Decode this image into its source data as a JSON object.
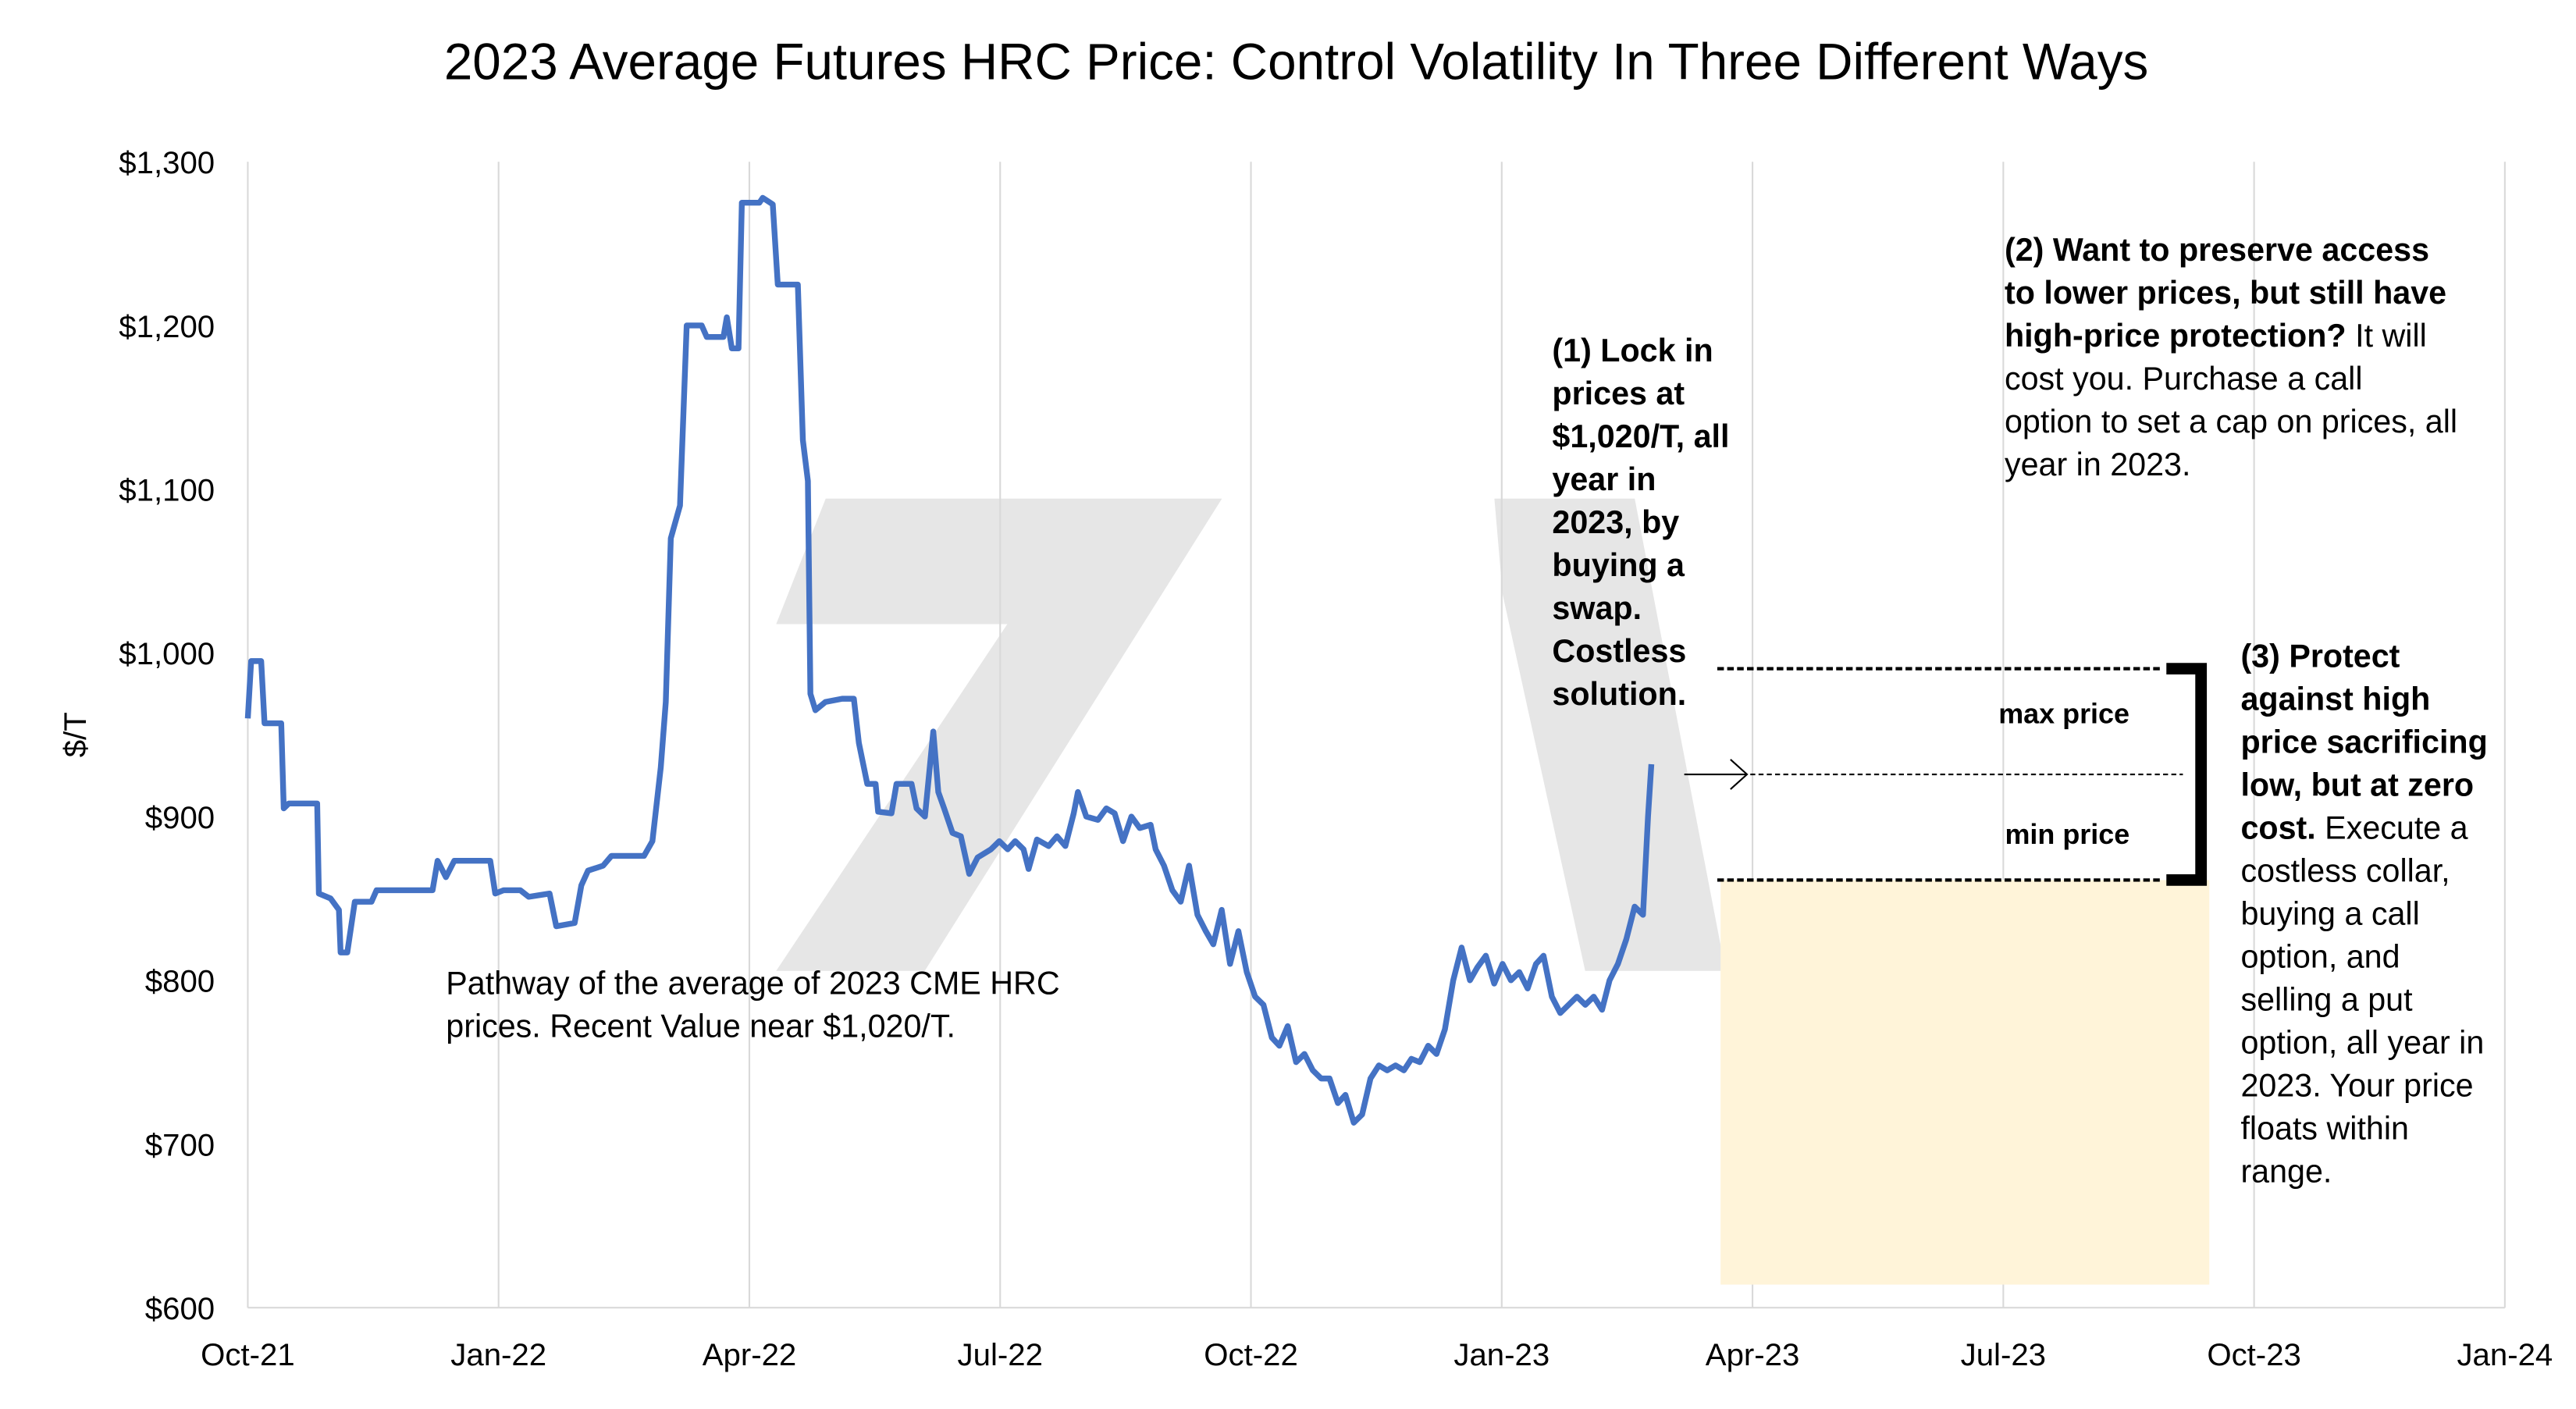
{
  "chart_data": {
    "type": "line",
    "title": "2023 Average Futures HRC Price: Control Volatility In Three Different Ways",
    "y_label": "$/T",
    "xlim": [
      0,
      27
    ],
    "xticks": [
      {
        "value": 0,
        "label": "Oct-21"
      },
      {
        "value": 3,
        "label": "Jan-22"
      },
      {
        "value": 6,
        "label": "Apr-22"
      },
      {
        "value": 9,
        "label": "Jul-22"
      },
      {
        "value": 12,
        "label": "Oct-22"
      },
      {
        "value": 15,
        "label": "Jan-23"
      },
      {
        "value": 18,
        "label": "Apr-23"
      },
      {
        "value": 21,
        "label": "Jul-23"
      },
      {
        "value": 24,
        "label": "Oct-23"
      },
      {
        "value": 27,
        "label": "Jan-24"
      }
    ],
    "ylim": [
      600,
      1300
    ],
    "yticks": [
      {
        "value": 600,
        "label": "$600"
      },
      {
        "value": 700,
        "label": "$700"
      },
      {
        "value": 800,
        "label": "$800"
      },
      {
        "value": 900,
        "label": "$900"
      },
      {
        "value": 1000,
        "label": "$1,000"
      },
      {
        "value": 1100,
        "label": "$1,100"
      },
      {
        "value": 1200,
        "label": "$1,200"
      },
      {
        "value": 1300,
        "label": "$1,300"
      }
    ],
    "grid": true,
    "series": [
      {
        "color": "#4472c4",
        "x": [
          0,
          0.04,
          0.16,
          0.2,
          0.4,
          0.43,
          0.49,
          0.83,
          0.85,
          0.99,
          1.09,
          1.11,
          1.19,
          1.28,
          1.48,
          1.54,
          2.21,
          2.27,
          2.37,
          2.47,
          2.9,
          2.96,
          3.06,
          3.26,
          3.36,
          3.61,
          3.69,
          3.91,
          3.99,
          4.07,
          4.25,
          4.35,
          4.74,
          4.84,
          4.94,
          5.0,
          5.06,
          5.17,
          5.25,
          5.43,
          5.49,
          5.69,
          5.73,
          5.79,
          5.87,
          5.91,
          6.12,
          6.16,
          6.28,
          6.34,
          6.58,
          6.64,
          6.7,
          6.73,
          6.79,
          6.91,
          7.11,
          7.25,
          7.31,
          7.41,
          7.51,
          7.54,
          7.7,
          7.76,
          7.94,
          8.0,
          8.1,
          8.2,
          8.26,
          8.33,
          8.43,
          8.53,
          8.63,
          8.73,
          8.89,
          8.99,
          9.09,
          9.18,
          9.28,
          9.34,
          9.44,
          9.58,
          9.68,
          9.78,
          9.88,
          9.93,
          10.03,
          10.17,
          10.27,
          10.37,
          10.47,
          10.57,
          10.67,
          10.8,
          10.86,
          10.96,
          11.06,
          11.16,
          11.26,
          11.36,
          11.46,
          11.55,
          11.65,
          11.75,
          11.85,
          11.95,
          12.05,
          12.15,
          12.25,
          12.34,
          12.44,
          12.54,
          12.64,
          12.74,
          12.84,
          12.94,
          13.04,
          13.13,
          13.23,
          13.33,
          13.43,
          13.53,
          13.63,
          13.73,
          13.83,
          13.92,
          14.02,
          14.12,
          14.22,
          14.32,
          14.42,
          14.52,
          14.62,
          14.71,
          14.81,
          14.91,
          15.01,
          15.11,
          15.21,
          15.31,
          15.41,
          15.5,
          15.6,
          15.7,
          15.8,
          15.9,
          16.0,
          16.1,
          16.2,
          16.29,
          16.39,
          16.49,
          16.59,
          16.69,
          16.75,
          16.79
        ],
        "values": [
          960,
          995,
          995,
          957,
          957,
          905,
          908,
          908,
          853,
          850,
          843,
          817,
          817,
          848,
          848,
          855,
          855,
          873,
          863,
          873,
          873,
          853,
          855,
          855,
          851,
          853,
          833,
          835,
          858,
          867,
          870,
          876,
          876,
          885,
          930,
          970,
          1070,
          1090,
          1200,
          1200,
          1193,
          1193,
          1205,
          1186,
          1186,
          1275,
          1275,
          1278,
          1274,
          1225,
          1225,
          1130,
          1105,
          975,
          965,
          970,
          972,
          972,
          945,
          920,
          920,
          903,
          902,
          920,
          920,
          905,
          900,
          952,
          915,
          905,
          890,
          888,
          865,
          875,
          880,
          885,
          880,
          885,
          880,
          868,
          886,
          882,
          888,
          882,
          902,
          915,
          900,
          898,
          905,
          902,
          885,
          900,
          893,
          895,
          880,
          870,
          855,
          848,
          870,
          840,
          830,
          822,
          843,
          810,
          830,
          805,
          790,
          785,
          765,
          760,
          772,
          750,
          755,
          745,
          740,
          740,
          725,
          730,
          713,
          718,
          740,
          748,
          745,
          748,
          745,
          752,
          750,
          760,
          755,
          770,
          800,
          820,
          800,
          808,
          815,
          798,
          810,
          800,
          805,
          795,
          810,
          815,
          790,
          780,
          785,
          790,
          785,
          790,
          782,
          800,
          810,
          825,
          845,
          840,
          900,
          932
        ]
      }
    ],
    "annotations": [
      {
        "bold": "(1) Lock in prices at $1,020/T, all year in 2023, by buying a swap. Costless solution."
      },
      {
        "bold": "(2) Want to preserve access to lower prices, but still have high-price protection?",
        "text": "It will cost you. Purchase a call option to set a cap on prices, all year in 2023."
      },
      {
        "bold": "(3) Protect against high price sacrificing low, but at zero cost.",
        "text": "Execute a costless collar, buying a call option, and selling a put option, all year in 2023.  Your price floats within range."
      },
      {
        "text": "Pathway of the average of 2023 CME HRC prices.  Recent Value near $1,020/T."
      },
      {
        "bold": "max price"
      },
      {
        "bold": "min price"
      }
    ]
  }
}
